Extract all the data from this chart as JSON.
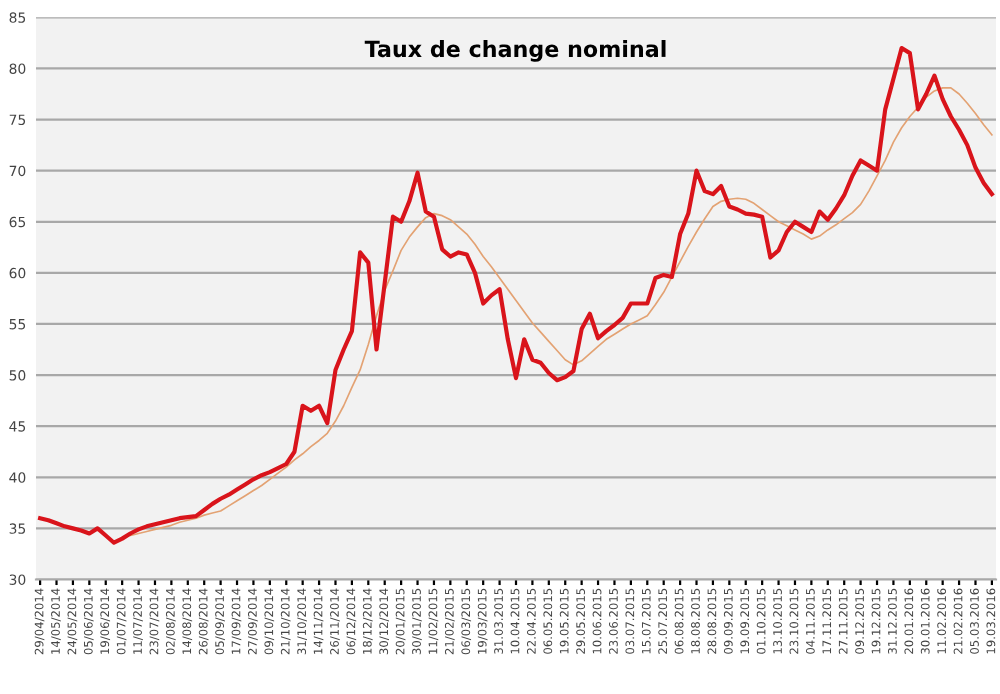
{
  "chart_data": {
    "type": "line",
    "title": "Taux de change nominal",
    "categories": [
      "29/04/2014",
      null,
      "14/05/2014",
      null,
      "24/05/2014",
      null,
      "05/06/2014",
      null,
      "19/06/2014",
      null,
      "01/07/2014",
      null,
      "11/07/2014",
      null,
      "23/07/2014",
      null,
      "02/08/2014",
      null,
      "14/08/2014",
      null,
      "26/08/2014",
      null,
      "05/09/2014",
      null,
      "17/09/2014",
      null,
      "27/09/2014",
      null,
      "09/10/2014",
      null,
      "21/10/2014",
      null,
      "31/10/2014",
      null,
      "14/11/2014",
      null,
      "26/11/2014",
      null,
      "06/12/2014",
      null,
      "18/12/2014",
      null,
      "30/12/2014",
      null,
      "20/01/2015",
      null,
      "30/01/2015",
      null,
      "11/02/2015",
      null,
      "21/02/2015",
      null,
      "06/03/2015",
      null,
      "19/03/2015",
      null,
      "31.03.2015",
      null,
      "10.04.2015",
      null,
      "22.04.2015",
      null,
      "06.05.2015",
      null,
      "19.05.2015",
      null,
      "29.05.2015",
      null,
      "10.06.2015",
      null,
      "23.06.2015",
      null,
      "03.07.2015",
      null,
      "15.07.2015",
      null,
      "25.07.2015",
      null,
      "06.08.2015",
      null,
      "18.08.2015",
      null,
      "28.08.2015",
      null,
      "09.09.2015",
      null,
      "19.09.2015",
      null,
      "01.10.2015",
      null,
      "13.10.2015",
      null,
      "23.10.2015",
      null,
      "04.11.2015",
      null,
      "17.11.2015",
      null,
      "27.11.2015",
      null,
      "09.12.2015",
      null,
      "19.12.2015",
      null,
      "31.12.2015",
      null,
      "20.01.2016",
      null,
      "30.01.2016",
      null,
      "11.02.2016",
      null,
      "21.02.2016",
      null,
      "05.03.2016",
      null,
      "19.03.2016"
    ],
    "series": [
      {
        "color": "#d9141b",
        "values": [
          36,
          35.8,
          35.5,
          35.2,
          35,
          34.8,
          34.5,
          35,
          34.3,
          33.6,
          34,
          34.5,
          34.9,
          35.2,
          35.4,
          35.6,
          35.8,
          36,
          36.1,
          36.2,
          36.8,
          37.4,
          37.9,
          38.3,
          38.8,
          39.3,
          39.8,
          40.2,
          40.5,
          40.9,
          41.3,
          42.5,
          47,
          46.5,
          47,
          45.3,
          50.5,
          52.5,
          54.3,
          62,
          61,
          52.5,
          59,
          65.5,
          65,
          67,
          69.8,
          66,
          65.5,
          62.3,
          61.6,
          62,
          61.8,
          60,
          57,
          57.8,
          58.4,
          53.5,
          49.7,
          53.5,
          51.5,
          51.2,
          50.2,
          49.5,
          49.8,
          50.4,
          54.5,
          56,
          53.6,
          54.3,
          54.9,
          55.6,
          57,
          57,
          57,
          59.5,
          59.8,
          59.6,
          63.8,
          65.8,
          70,
          68,
          67.7,
          68.5,
          66.5,
          66.2,
          65.8,
          65.7,
          65.5,
          61.5,
          62.2,
          64,
          65,
          64.5,
          64,
          66,
          65.2,
          66.3,
          67.6,
          69.5,
          71,
          70.5,
          70,
          76,
          79,
          82,
          81.5,
          76,
          77.5,
          79.3,
          77,
          75.3,
          74,
          72.5,
          70.3,
          68.8,
          67.7
        ]
      },
      {
        "color": "#e3a273",
        "values": [
          null,
          null,
          null,
          null,
          null,
          null,
          null,
          null,
          null,
          null,
          null,
          34.3,
          34.5,
          34.7,
          34.9,
          35.1,
          35.3,
          35.6,
          35.8,
          36,
          36.3,
          36.5,
          36.7,
          37.2,
          37.7,
          38.2,
          38.7,
          39.2,
          39.8,
          40.4,
          41,
          41.7,
          42.3,
          43,
          43.6,
          44.3,
          45.5,
          47,
          48.8,
          50.5,
          53,
          55.8,
          58.3,
          60.2,
          62.2,
          63.5,
          64.5,
          65.4,
          65.8,
          65.6,
          65.2,
          64.5,
          63.8,
          62.8,
          61.6,
          60.6,
          59.5,
          58.4,
          57.3,
          56.2,
          55.1,
          54.2,
          53.3,
          52.4,
          51.5,
          51,
          51.4,
          52.1,
          52.8,
          53.5,
          54,
          54.5,
          55,
          55.4,
          55.8,
          56.9,
          58.1,
          59.6,
          61.1,
          62.6,
          64,
          65.3,
          66.5,
          67,
          67.2,
          67.3,
          67.2,
          66.8,
          66.2,
          65.6,
          65,
          64.6,
          64.2,
          63.8,
          63.3,
          63.6,
          64.2,
          64.7,
          65.3,
          65.9,
          66.7,
          68,
          69.5,
          71,
          72.8,
          74.2,
          75.3,
          76.2,
          77.2,
          77.8,
          78.1,
          78.1,
          77.5,
          76.6,
          75.6,
          74.5,
          73.5
        ]
      }
    ],
    "ylim": [
      30,
      85
    ],
    "yticks": [
      30,
      35,
      40,
      45,
      50,
      55,
      60,
      65,
      70,
      75,
      80,
      85
    ],
    "grid": "y",
    "marker": "none",
    "line_style": "solid"
  }
}
